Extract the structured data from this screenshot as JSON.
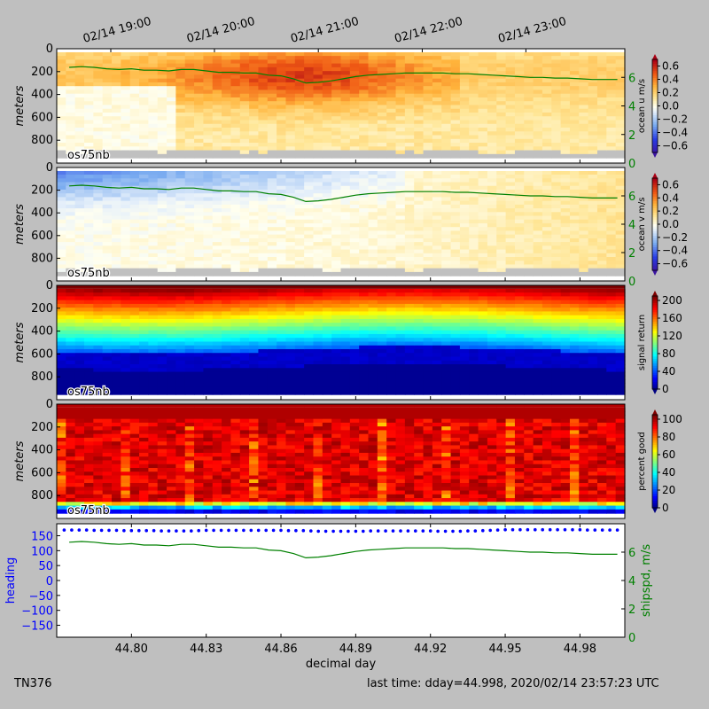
{
  "footer": {
    "cruise": "TN376",
    "last_time": "last time: dday=44.998,  2020/02/14 23:57:23 UTC"
  },
  "colors": {
    "heading": "#0000ff",
    "shipspd": "#008000",
    "nodata": "#c0c0c0"
  },
  "chart_data": [
    {
      "type": "heatmap",
      "panel": "ocean-u",
      "ylabel": "meters",
      "ylim": [
        1000,
        0
      ],
      "yticks": [
        0,
        200,
        400,
        600,
        800
      ],
      "instrument_label": "os75nb",
      "colorbar": {
        "label": "ocean u m/s",
        "range": [
          -0.7,
          0.7
        ],
        "ticks": [
          "0.6",
          "0.4",
          "0.2",
          "0.0",
          "−0.2",
          "−0.4",
          "−0.6"
        ],
        "colormap": "jet"
      },
      "top_time_ticks": [
        "02/14 19:00",
        "02/14 20:00",
        "02/14 21:00",
        "02/14 22:00",
        "02/14 23:00"
      ],
      "right_axis": {
        "ticks": [
          "0",
          "2",
          "4",
          "6"
        ],
        "range": [
          0,
          8
        ]
      },
      "description": "Mostly positive eastward velocity 0.1-0.5 m/s, strongest (~0.5) near 100-300 m around 44.85-44.89; weak near zero at depth before 44.83"
    },
    {
      "type": "heatmap",
      "panel": "ocean-v",
      "ylabel": "meters",
      "ylim": [
        1000,
        0
      ],
      "yticks": [
        0,
        200,
        400,
        600,
        800
      ],
      "instrument_label": "os75nb",
      "colorbar": {
        "label": "ocean v m/s",
        "range": [
          -0.7,
          0.7
        ],
        "ticks": [
          "0.6",
          "0.4",
          "0.2",
          "0.0",
          "−0.2",
          "−0.4",
          "−0.6"
        ],
        "colormap": "jet"
      },
      "right_axis": {
        "ticks": [
          "0",
          "2",
          "4",
          "6"
        ],
        "range": [
          0,
          8
        ]
      },
      "description": "Negative v (~-0.4) near surface at start, trending to weak positive later"
    },
    {
      "type": "heatmap",
      "panel": "signal-return",
      "ylabel": "meters",
      "ylim": [
        1000,
        0
      ],
      "yticks": [
        0,
        200,
        400,
        600,
        800
      ],
      "instrument_label": "os75nb",
      "colorbar": {
        "label": "signal return",
        "range": [
          0,
          210
        ],
        "ticks": [
          "200",
          "160",
          "120",
          "80",
          "40",
          "0"
        ],
        "colormap": "jet"
      },
      "description": "High (~200) at surface decreasing with depth; low (~0) below ~600 m"
    },
    {
      "type": "heatmap",
      "panel": "percent-good",
      "ylabel": "meters",
      "ylim": [
        1000,
        0
      ],
      "yticks": [
        0,
        200,
        400,
        600,
        800
      ],
      "instrument_label": "os75nb",
      "colorbar": {
        "label": "percent good",
        "range": [
          0,
          105
        ],
        "ticks": [
          "100",
          "80",
          "60",
          "40",
          "20",
          "0"
        ],
        "colormap": "jet"
      },
      "description": "Mostly 85-100 percent above 800 m, dropping to near 0 below ~900 m"
    },
    {
      "type": "line",
      "panel": "heading-speed",
      "xlabel": "decimal day",
      "xlim": [
        44.77,
        44.998
      ],
      "xticks": [
        "44.80",
        "44.83",
        "44.86",
        "44.89",
        "44.92",
        "44.95",
        "44.98"
      ],
      "series": [
        {
          "name": "heading",
          "axis": "left",
          "ylabel": "heading",
          "ylim": [
            -190,
            190
          ],
          "yticks": [
            "150",
            "100",
            "50",
            "0",
            "−50",
            "−100",
            "−150"
          ],
          "x": [
            44.773,
            44.776,
            44.779,
            44.782,
            44.785,
            44.788,
            44.791,
            44.794,
            44.797,
            44.8,
            44.803,
            44.806,
            44.809,
            44.812,
            44.815,
            44.818,
            44.821,
            44.824,
            44.827,
            44.83,
            44.833,
            44.836,
            44.839,
            44.842,
            44.845,
            44.848,
            44.851,
            44.854,
            44.857,
            44.86,
            44.863,
            44.866,
            44.869,
            44.872,
            44.875,
            44.878,
            44.881,
            44.884,
            44.887,
            44.89,
            44.893,
            44.896,
            44.899,
            44.902,
            44.905,
            44.908,
            44.911,
            44.914,
            44.917,
            44.92,
            44.923,
            44.926,
            44.929,
            44.932,
            44.935,
            44.938,
            44.941,
            44.944,
            44.947,
            44.95,
            44.953,
            44.956,
            44.959,
            44.962,
            44.965,
            44.968,
            44.971,
            44.974,
            44.977,
            44.98,
            44.983,
            44.986,
            44.989,
            44.992,
            44.995
          ],
          "y": [
            169,
            169,
            169,
            169,
            168,
            168,
            168,
            168,
            167,
            167,
            167,
            167,
            167,
            166,
            166,
            166,
            166,
            166,
            167,
            168,
            168,
            168,
            168,
            168,
            168,
            168,
            168,
            168,
            168,
            168,
            167,
            167,
            167,
            166,
            165,
            165,
            165,
            165,
            165,
            165,
            165,
            166,
            166,
            166,
            166,
            166,
            166,
            166,
            166,
            166,
            165,
            165,
            165,
            165,
            166,
            166,
            167,
            168,
            169,
            170,
            170,
            170,
            170,
            170,
            170,
            170,
            170,
            170,
            170,
            170,
            169,
            169,
            169,
            169,
            169
          ]
        },
        {
          "name": "shipspd, m/s",
          "axis": "right",
          "ylabel": "shipspd, m/s",
          "ylim": [
            0,
            8
          ],
          "yticks": [
            "0",
            "2",
            "4",
            "6"
          ],
          "x": [
            44.775,
            44.78,
            44.785,
            44.79,
            44.795,
            44.8,
            44.805,
            44.81,
            44.815,
            44.82,
            44.825,
            44.83,
            44.835,
            44.84,
            44.845,
            44.85,
            44.855,
            44.86,
            44.865,
            44.87,
            44.875,
            44.88,
            44.885,
            44.89,
            44.895,
            44.9,
            44.905,
            44.91,
            44.915,
            44.92,
            44.925,
            44.93,
            44.935,
            44.94,
            44.945,
            44.95,
            44.955,
            44.96,
            44.965,
            44.97,
            44.975,
            44.98,
            44.985,
            44.99,
            44.995
          ],
          "y": [
            6.7,
            6.75,
            6.7,
            6.6,
            6.55,
            6.6,
            6.5,
            6.5,
            6.45,
            6.55,
            6.55,
            6.45,
            6.35,
            6.35,
            6.3,
            6.3,
            6.15,
            6.1,
            5.9,
            5.6,
            5.65,
            5.75,
            5.9,
            6.05,
            6.15,
            6.2,
            6.25,
            6.3,
            6.3,
            6.3,
            6.3,
            6.25,
            6.25,
            6.2,
            6.15,
            6.1,
            6.05,
            6.0,
            6.0,
            5.95,
            5.95,
            5.9,
            5.85,
            5.85,
            5.85
          ]
        }
      ]
    }
  ]
}
